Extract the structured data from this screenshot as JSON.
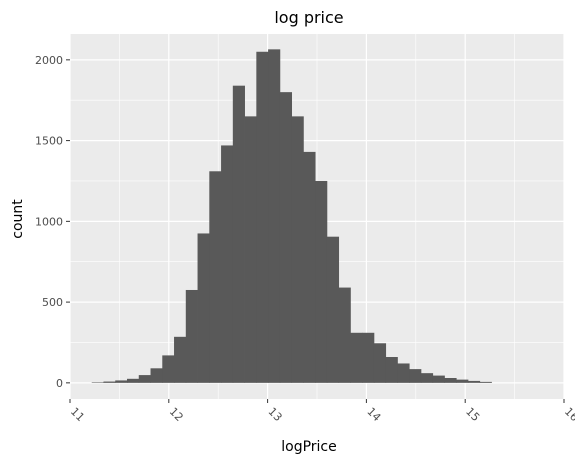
{
  "chart_data": {
    "type": "bar",
    "title": "log price",
    "xlabel": "logPrice",
    "ylabel": "count",
    "xlim": [
      11.0,
      16.0
    ],
    "ylim": [
      -100,
      2160
    ],
    "x_ticks": [
      11,
      12,
      13,
      14,
      15,
      16
    ],
    "y_ticks": [
      0,
      500,
      1000,
      1500,
      2000
    ],
    "bin_width": 0.119,
    "bin_start": 11.22,
    "values": [
      3,
      8,
      15,
      25,
      48,
      90,
      170,
      285,
      575,
      925,
      1310,
      1470,
      1840,
      1650,
      2050,
      2065,
      1800,
      1650,
      1430,
      1250,
      905,
      590,
      310,
      310,
      245,
      160,
      120,
      85,
      60,
      45,
      30,
      20,
      12,
      6
    ],
    "bar_color": "#595959",
    "panel_color": "#ebebeb",
    "grid_color": "#ffffff"
  }
}
